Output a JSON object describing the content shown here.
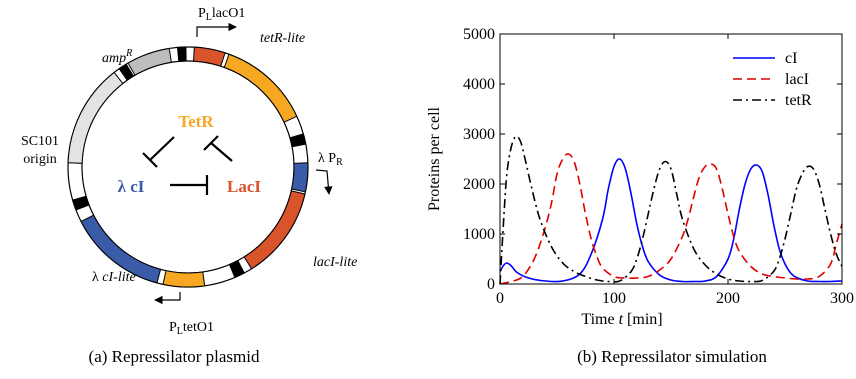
{
  "plasmid": {
    "caption": "(a) Repressilator plasmid",
    "labels": {
      "plac_p": "P",
      "plac_sub": "L",
      "plac_rest": "lacO1",
      "ptet_p": "P",
      "ptet_sub": "L",
      "ptet_rest": "tetO1",
      "lambda_pr_main": "λ P",
      "lambda_pr_sub": "R",
      "tetr_lite": "tetR-lite",
      "laci_lite": "lacI-lite",
      "ci_lite_prefix": "λ ",
      "ci_lite_italic": "cI-lite",
      "amp_main": "amp",
      "amp_sup": "R",
      "origin_line1": "SC101",
      "origin_line2": "origin"
    },
    "network": {
      "tetr": "TetR",
      "ci": "λ cI",
      "laci": "LacI"
    },
    "colors": {
      "tetr": "#f7a823",
      "laci": "#d9532b",
      "ci": "#3a5ba8",
      "amp": "#bdbdbd",
      "origin": "#e3e3e3",
      "marker": "#000000"
    }
  },
  "chart_data": {
    "type": "line",
    "caption": "(b) Repressilator simulation",
    "xlabel_prefix": "Time ",
    "xlabel_var": "t",
    "xlabel_suffix": " [min]",
    "ylabel": "Proteins per cell",
    "xlim": [
      0,
      300
    ],
    "ylim": [
      0,
      5000
    ],
    "xticks": [
      0,
      100,
      200,
      300
    ],
    "yticks": [
      0,
      1000,
      2000,
      3000,
      4000,
      5000
    ],
    "legend_position": "top-right",
    "series": [
      {
        "name": "cI",
        "color": "#0000ff",
        "style": "solid",
        "x": [
          0,
          3,
          6,
          10,
          15,
          25,
          40,
          55,
          70,
          80,
          90,
          95,
          100,
          105,
          110,
          115,
          120,
          125,
          130,
          140,
          150,
          160,
          170,
          180,
          190,
          200,
          205,
          210,
          215,
          220,
          225,
          230,
          235,
          240,
          245,
          250,
          255,
          260,
          270,
          280,
          290,
          300
        ],
        "y": [
          250,
          370,
          420,
          360,
          230,
          120,
          60,
          60,
          200,
          600,
          1300,
          1900,
          2350,
          2500,
          2300,
          1800,
          1200,
          750,
          450,
          180,
          80,
          50,
          50,
          60,
          150,
          500,
          900,
          1500,
          2000,
          2300,
          2380,
          2250,
          1800,
          1200,
          700,
          400,
          220,
          130,
          60,
          50,
          50,
          60
        ]
      },
      {
        "name": "lacI",
        "color": "#e00000",
        "style": "dashed",
        "x": [
          0,
          10,
          20,
          30,
          38,
          45,
          50,
          55,
          60,
          65,
          70,
          75,
          80,
          85,
          90,
          100,
          110,
          120,
          130,
          140,
          150,
          160,
          165,
          170,
          175,
          180,
          185,
          190,
          195,
          200,
          205,
          210,
          220,
          230,
          240,
          250,
          260,
          270,
          280,
          290,
          295,
          300
        ],
        "y": [
          0,
          50,
          150,
          500,
          1000,
          1600,
          2200,
          2500,
          2600,
          2450,
          2000,
          1400,
          900,
          550,
          320,
          150,
          120,
          120,
          150,
          280,
          500,
          950,
          1300,
          1750,
          2150,
          2350,
          2400,
          2300,
          1900,
          1400,
          950,
          650,
          350,
          200,
          150,
          120,
          100,
          100,
          150,
          400,
          800,
          1200
        ]
      },
      {
        "name": "tetR",
        "color": "#000000",
        "style": "dashdot",
        "x": [
          0,
          3,
          6,
          10,
          14,
          18,
          22,
          28,
          35,
          45,
          55,
          65,
          75,
          85,
          95,
          105,
          115,
          120,
          125,
          130,
          135,
          140,
          145,
          150,
          155,
          160,
          170,
          180,
          190,
          200,
          210,
          220,
          230,
          240,
          245,
          250,
          255,
          260,
          265,
          270,
          275,
          280,
          285,
          290,
          295,
          300
        ],
        "y": [
          0,
          1200,
          2200,
          2750,
          2950,
          2850,
          2500,
          1900,
          1300,
          750,
          420,
          250,
          150,
          80,
          50,
          60,
          250,
          500,
          900,
          1400,
          1900,
          2300,
          2450,
          2300,
          1800,
          1300,
          700,
          380,
          200,
          100,
          60,
          50,
          70,
          250,
          500,
          900,
          1400,
          1900,
          2200,
          2350,
          2300,
          2000,
          1500,
          1000,
          600,
          350
        ]
      }
    ]
  }
}
